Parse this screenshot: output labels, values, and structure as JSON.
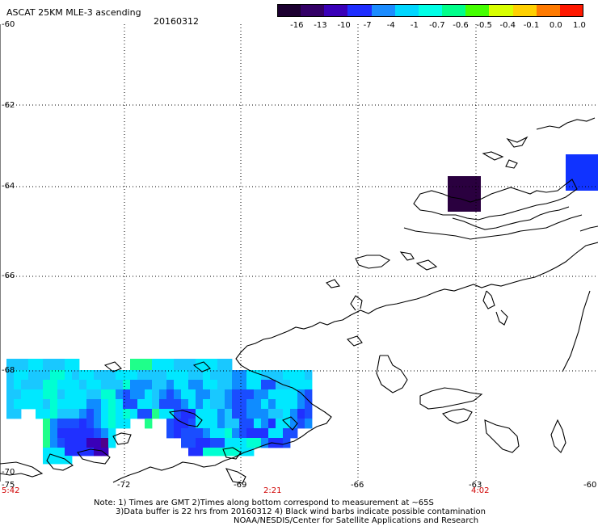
{
  "header": {
    "title": "ASCAT 25KM MLE-3 ascending",
    "date": "20160312"
  },
  "colorbar": {
    "ticks": [
      "-16",
      "-13",
      "-10",
      "-7",
      "-4",
      "-1",
      "-0.7",
      "-0.6",
      "-0.5",
      "-0.4",
      "-0.1",
      "0.0",
      "1.0"
    ],
    "colors": [
      "#1c0030",
      "#330066",
      "#3a00b8",
      "#1f2eff",
      "#1b8cff",
      "#00d6ff",
      "#00ffe6",
      "#00ff8a",
      "#44ff00",
      "#d8ff00",
      "#ffd000",
      "#ff7a00",
      "#ff1800"
    ]
  },
  "axes": {
    "lat_labels": [
      "-60",
      "-62",
      "-64",
      "-66",
      "-68",
      "-70"
    ],
    "lon_labels": [
      "-75",
      "-72",
      "-69",
      "-66",
      "-63",
      "-60"
    ]
  },
  "times": [
    "5:42",
    "2:21",
    "4:02"
  ],
  "notes": [
    "Note: 1) Times are GMT 2)Times along bottom correspond to measurement at ~65S",
    "3)Data buffer is 22 hrs from 20160312 4) Black wind barbs indicate possible contamination",
    "NOAA/NESDIS/Center for Satellite Applications and Research"
  ],
  "colors": {
    "time_label": "#d00000",
    "grid": "#000000",
    "coast": "#000000"
  }
}
